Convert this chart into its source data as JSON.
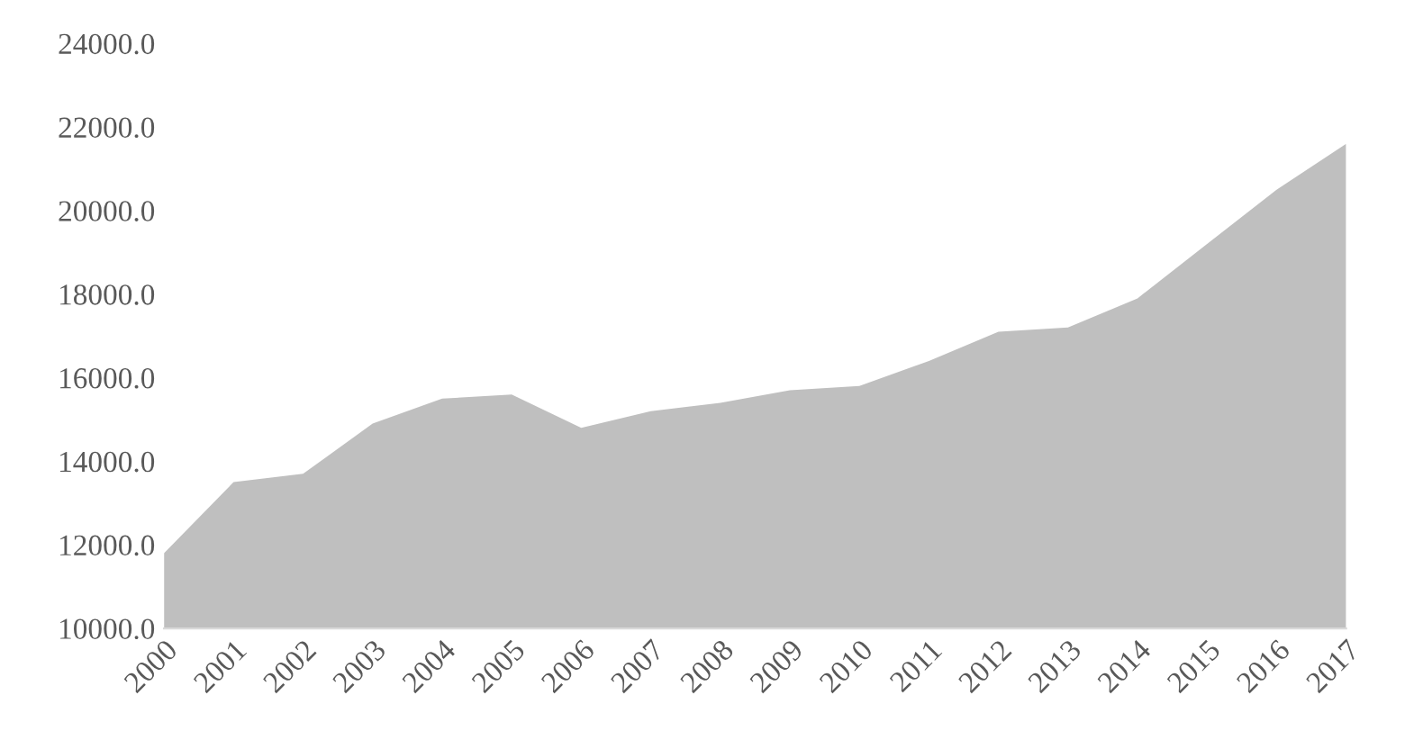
{
  "chart_data": {
    "type": "area",
    "categories": [
      "2000",
      "2001",
      "2002",
      "2003",
      "2004",
      "2005",
      "2006",
      "2007",
      "2008",
      "2009",
      "2010",
      "2011",
      "2012",
      "2013",
      "2014",
      "2015",
      "2016",
      "2017"
    ],
    "series": [
      {
        "color": "#bfbfbf",
        "values": [
          11800,
          13500,
          13700,
          14900,
          15500,
          15600,
          14800,
          15200,
          15400,
          15700,
          15800,
          16400,
          17100,
          17200,
          17900,
          19200,
          20500,
          21600
        ]
      }
    ],
    "ylim": [
      10000,
      24000
    ],
    "yticks": [
      {
        "value": 10000,
        "label": "10000.0"
      },
      {
        "value": 12000,
        "label": "12000.0"
      },
      {
        "value": 14000,
        "label": "14000.0"
      },
      {
        "value": 16000,
        "label": "16000.0"
      },
      {
        "value": 18000,
        "label": "18000.0"
      },
      {
        "value": 20000,
        "label": "20000.0"
      },
      {
        "value": 22000,
        "label": "22000.0"
      },
      {
        "value": 24000,
        "label": "24000.0"
      }
    ],
    "grid": false,
    "legend": false
  }
}
